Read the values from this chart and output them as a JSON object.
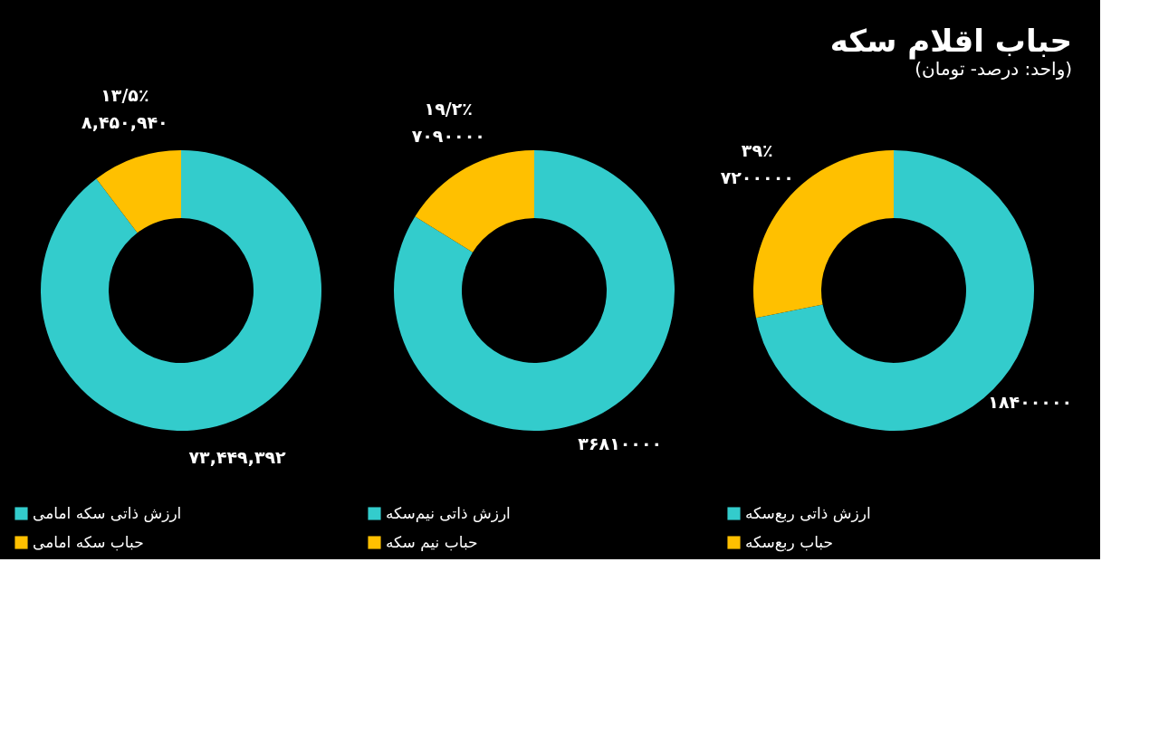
{
  "chart_data": [
    {
      "type": "donut",
      "title": "حباب اقلام سکه",
      "subtitle": "(واحد: درصد- تومان)",
      "categories": [
        "ارزش ذاتی ربع‌سکه",
        "حباب ربع‌سکه"
      ],
      "values": [
        18400000,
        7200000
      ],
      "colors": [
        "#33cccc",
        "#ffc000"
      ],
      "value_labels": [
        "۱۸۴۰۰۰۰۰",
        "۷۲۰۰۰۰۰"
      ],
      "annotations": [
        "۳۹٪"
      ],
      "legend": "bottom"
    },
    {
      "type": "donut",
      "categories": [
        "ارزش ذاتی نیم‌سکه",
        "حباب نیم سکه"
      ],
      "values": [
        36810000,
        7090000
      ],
      "colors": [
        "#33cccc",
        "#ffc000"
      ],
      "value_labels": [
        "۳۶۸۱۰۰۰۰",
        "۷۰۹۰۰۰۰"
      ],
      "annotations": [
        "۱۹/۲٪"
      ],
      "legend": "bottom"
    },
    {
      "type": "donut",
      "categories": [
        "ارزش ذاتی سکه امامی",
        "حباب سکه امامی"
      ],
      "values": [
        73449392,
        8450940
      ],
      "colors": [
        "#33cccc",
        "#ffc000"
      ],
      "value_labels": [
        "۷۳,۴۴۹,۳۹۲",
        "۸,۴۵۰,۹۴۰"
      ],
      "annotations": [
        "۱۳/۵٪"
      ],
      "legend": "bottom"
    }
  ]
}
